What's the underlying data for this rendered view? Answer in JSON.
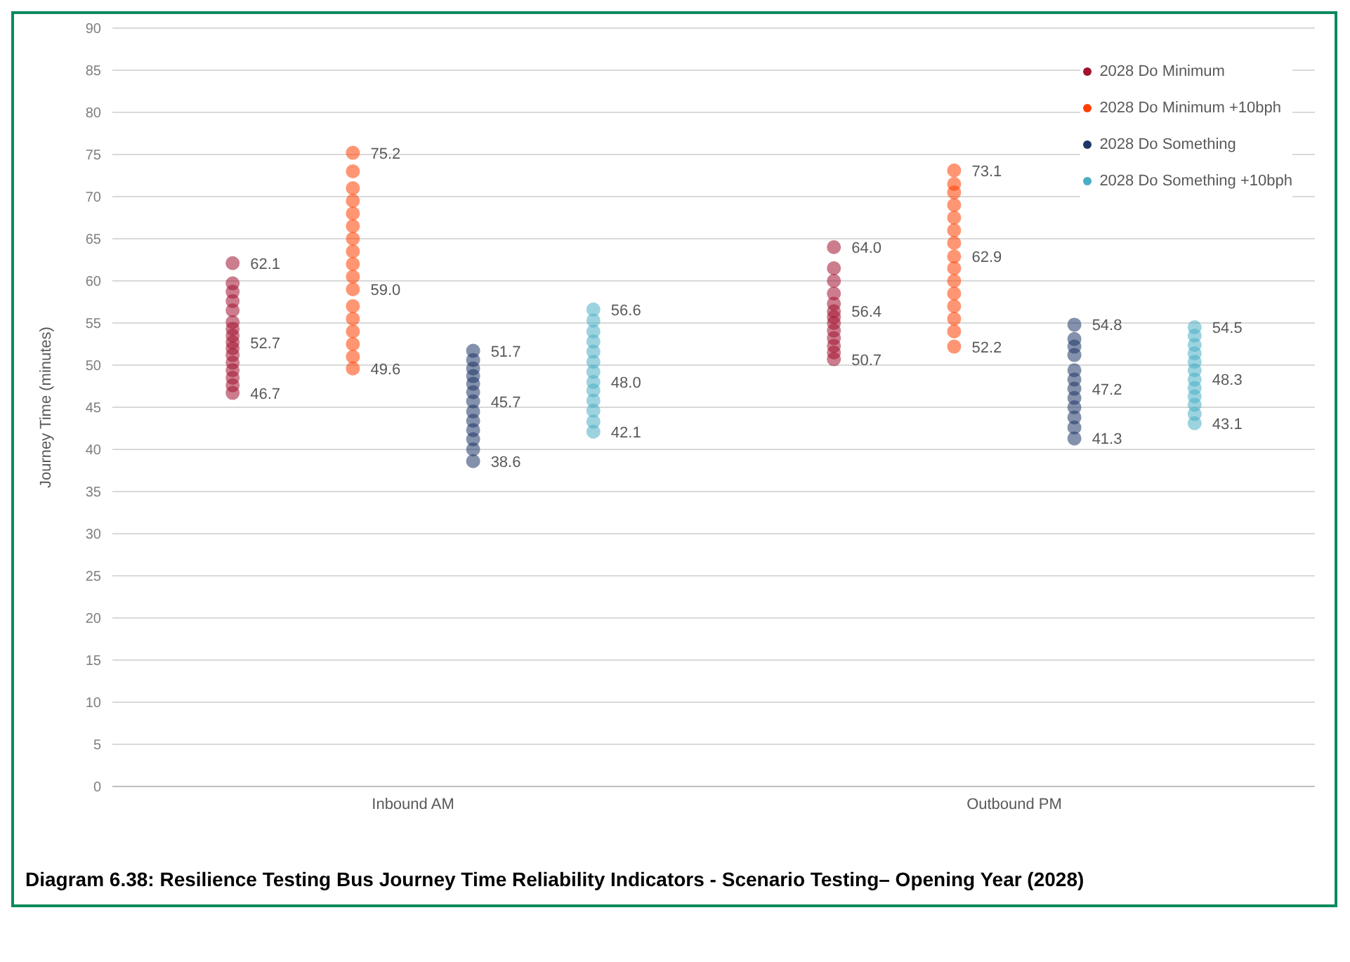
{
  "chart_data": {
    "type": "scatter",
    "title": "Diagram 6.38: Resilience Testing Bus Journey Time Reliability Indicators - Scenario Testing– Opening Year (2028)",
    "ylabel": "Journey Time (minutes)",
    "categories": [
      "Inbound AM",
      "Outbound PM"
    ],
    "ylim": [
      0,
      90
    ],
    "yticks": [
      0,
      5,
      10,
      15,
      20,
      25,
      30,
      35,
      40,
      45,
      50,
      55,
      60,
      65,
      70,
      75,
      80,
      85,
      90
    ],
    "grid": "y",
    "legend": "top right",
    "marker": "circle",
    "series": [
      {
        "name": "2028 Do Minimum",
        "color": "#a3122f",
        "x": [
          "Inbound AM",
          "Inbound AM",
          "Inbound AM",
          "Inbound AM",
          "Inbound AM",
          "Inbound AM",
          "Inbound AM",
          "Inbound AM",
          "Inbound AM",
          "Inbound AM",
          "Inbound AM",
          "Inbound AM",
          "Inbound AM",
          "Inbound AM",
          "Inbound AM",
          "Inbound AM",
          "Outbound PM",
          "Outbound PM",
          "Outbound PM",
          "Outbound PM",
          "Outbound PM",
          "Outbound PM",
          "Outbound PM",
          "Outbound PM",
          "Outbound PM",
          "Outbound PM",
          "Outbound PM",
          "Outbound PM",
          "Outbound PM"
        ],
        "values": [
          46.7,
          47.6,
          48.5,
          49.4,
          50.3,
          51.2,
          52,
          52.7,
          53.5,
          54.3,
          55.1,
          56.5,
          57.6,
          58.7,
          59.7,
          62.1,
          50.7,
          51.5,
          52.3,
          53.2,
          54.1,
          55,
          55.7,
          56.4,
          57.3,
          58.5,
          60,
          61.5,
          64.0
        ],
        "value_labels": [
          "46.7",
          null,
          null,
          null,
          null,
          null,
          null,
          "52.7",
          null,
          null,
          null,
          null,
          null,
          null,
          null,
          "62.1",
          "50.7",
          null,
          null,
          null,
          null,
          null,
          null,
          "56.4",
          null,
          null,
          null,
          null,
          "64.0"
        ]
      },
      {
        "name": "2028 Do Minimum +10bph",
        "color": "#ff4000",
        "x": [
          "Inbound AM",
          "Inbound AM",
          "Inbound AM",
          "Inbound AM",
          "Inbound AM",
          "Inbound AM",
          "Inbound AM",
          "Inbound AM",
          "Inbound AM",
          "Inbound AM",
          "Inbound AM",
          "Inbound AM",
          "Inbound AM",
          "Inbound AM",
          "Inbound AM",
          "Inbound AM",
          "Inbound AM",
          "Outbound PM",
          "Outbound PM",
          "Outbound PM",
          "Outbound PM",
          "Outbound PM",
          "Outbound PM",
          "Outbound PM",
          "Outbound PM",
          "Outbound PM",
          "Outbound PM",
          "Outbound PM",
          "Outbound PM",
          "Outbound PM",
          "Outbound PM",
          "Outbound PM"
        ],
        "values": [
          49.6,
          51,
          52.5,
          54,
          55.5,
          57,
          59.0,
          60.5,
          62,
          63.5,
          65,
          66.5,
          68,
          69.5,
          71,
          73,
          75.2,
          52.2,
          54,
          55.5,
          57,
          58.5,
          60,
          61.5,
          62.9,
          64.5,
          66,
          67.5,
          69,
          70.5,
          71.5,
          73.1
        ],
        "value_labels": [
          "49.6",
          null,
          null,
          null,
          null,
          null,
          "59.0",
          null,
          null,
          null,
          null,
          null,
          null,
          null,
          null,
          null,
          "75.2",
          "52.2",
          null,
          null,
          null,
          null,
          null,
          null,
          "62.9",
          null,
          null,
          null,
          null,
          null,
          null,
          "73.1"
        ]
      },
      {
        "name": "2028 Do Something",
        "color": "#1f3768",
        "x": [
          "Inbound AM",
          "Inbound AM",
          "Inbound AM",
          "Inbound AM",
          "Inbound AM",
          "Inbound AM",
          "Inbound AM",
          "Inbound AM",
          "Inbound AM",
          "Inbound AM",
          "Inbound AM",
          "Inbound AM",
          "Inbound AM",
          "Outbound PM",
          "Outbound PM",
          "Outbound PM",
          "Outbound PM",
          "Outbound PM",
          "Outbound PM",
          "Outbound PM",
          "Outbound PM",
          "Outbound PM",
          "Outbound PM",
          "Outbound PM",
          "Outbound PM"
        ],
        "values": [
          38.6,
          40,
          41.2,
          42.3,
          43.4,
          44.5,
          45.7,
          46.8,
          47.8,
          48.7,
          49.6,
          50.6,
          51.7,
          41.3,
          42.6,
          43.8,
          45,
          46.1,
          47.2,
          48.3,
          49.4,
          51.2,
          52.2,
          53.1,
          54.8
        ],
        "value_labels": [
          "38.6",
          null,
          null,
          null,
          null,
          null,
          "45.7",
          null,
          null,
          null,
          null,
          null,
          "51.7",
          "41.3",
          null,
          null,
          null,
          null,
          "47.2",
          null,
          null,
          null,
          null,
          null,
          "54.8"
        ]
      },
      {
        "name": "2028 Do Something +10bph",
        "color": "#4aaec4",
        "x": [
          "Inbound AM",
          "Inbound AM",
          "Inbound AM",
          "Inbound AM",
          "Inbound AM",
          "Inbound AM",
          "Inbound AM",
          "Inbound AM",
          "Inbound AM",
          "Inbound AM",
          "Inbound AM",
          "Inbound AM",
          "Inbound AM",
          "Outbound PM",
          "Outbound PM",
          "Outbound PM",
          "Outbound PM",
          "Outbound PM",
          "Outbound PM",
          "Outbound PM",
          "Outbound PM",
          "Outbound PM",
          "Outbound PM",
          "Outbound PM",
          "Outbound PM"
        ],
        "values": [
          42.1,
          43.3,
          44.6,
          45.8,
          47,
          48.0,
          49.2,
          50.4,
          51.6,
          52.8,
          54,
          55.3,
          56.6,
          43.1,
          44.2,
          45.3,
          46.3,
          47.3,
          48.3,
          49.4,
          50.4,
          51.4,
          52.4,
          53.5,
          54.5
        ],
        "value_labels": [
          "42.1",
          null,
          null,
          null,
          null,
          "48.0",
          null,
          null,
          null,
          null,
          null,
          null,
          "56.6",
          "43.1",
          null,
          null,
          null,
          null,
          "48.3",
          null,
          null,
          null,
          null,
          null,
          "54.5"
        ]
      }
    ]
  }
}
